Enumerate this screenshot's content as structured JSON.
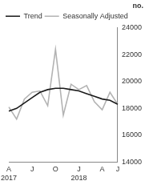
{
  "chart_data": {
    "type": "line",
    "ylabel": "no.",
    "categories": [
      [
        "A",
        "2017"
      ],
      null,
      null,
      "J",
      null,
      null,
      "O",
      null,
      null,
      [
        "J",
        "2018"
      ],
      null,
      null,
      "A",
      null,
      "J"
    ],
    "series": [
      {
        "name": "Trend",
        "color": "#1a1a1a",
        "values": [
          17800,
          18000,
          18400,
          18800,
          19200,
          19400,
          19500,
          19500,
          19400,
          19300,
          19100,
          18900,
          18700,
          18600,
          18300
        ]
      },
      {
        "name": "Seasonally Adjusted",
        "color": "#b3b3b3",
        "values": [
          18100,
          17200,
          18700,
          19200,
          19300,
          18200,
          22400,
          17500,
          19800,
          19400,
          19700,
          18500,
          17900,
          19200,
          18300
        ]
      }
    ],
    "ylim": [
      14000,
      24000
    ],
    "yticks": [
      14000,
      16000,
      18000,
      20000,
      22000,
      24000
    ],
    "grid": false,
    "legend": "top-left"
  }
}
